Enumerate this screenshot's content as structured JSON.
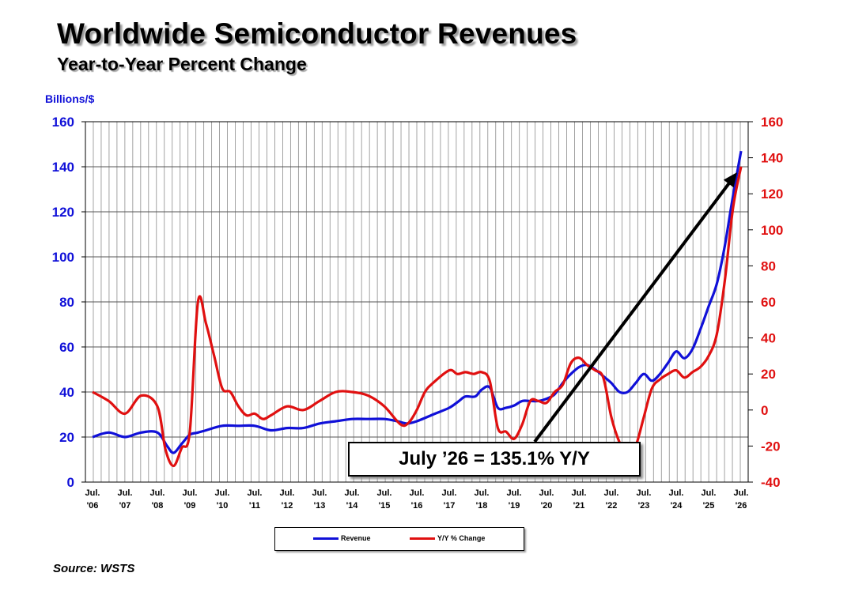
{
  "chart_data": {
    "type": "line",
    "title": "Worldwide Semiconductor Revenues",
    "subtitle": "Year-to-Year Percent Change",
    "ylabel": "Billions/$",
    "ylim": [
      0,
      160
    ],
    "y2lim": [
      -40,
      160
    ],
    "yticks": [
      "0",
      "20",
      "40",
      "60",
      "80",
      "100",
      "120",
      "140",
      "160"
    ],
    "y2ticks": [
      "-40",
      "-20",
      "0",
      "20",
      "40",
      "60",
      "80",
      "100",
      "120",
      "140",
      "160"
    ],
    "x_ticks": [
      [
        "Jul.",
        "'06"
      ],
      [
        "Jul.",
        "'07"
      ],
      [
        "Jul.",
        "'08"
      ],
      [
        "Jul.",
        "'09"
      ],
      [
        "Jul.",
        "'10"
      ],
      [
        "Jul.",
        "'11"
      ],
      [
        "Jul.",
        "'12"
      ],
      [
        "Jul.",
        "'13"
      ],
      [
        "Jul.",
        "'14"
      ],
      [
        "Jul.",
        "'15"
      ],
      [
        "Jul.",
        "'16"
      ],
      [
        "Jul.",
        "'17"
      ],
      [
        "Jul.",
        "'18"
      ],
      [
        "Jul.",
        "'19"
      ],
      [
        "Jul.",
        "'20"
      ],
      [
        "Jul.",
        "'21"
      ],
      [
        "Jul.",
        "'22"
      ],
      [
        "Jul.",
        "'23"
      ],
      [
        "Jul.",
        "'24"
      ],
      [
        "Jul.",
        "'25"
      ],
      [
        "Jul.",
        "'26"
      ]
    ],
    "grid": true,
    "legend_position": "bottom-center",
    "series": [
      {
        "name": "Revenue",
        "axis": "left",
        "color": "#1010d8",
        "x": [
          2006.5,
          2007.0,
          2007.5,
          2008.0,
          2008.5,
          2008.8,
          2009.0,
          2009.25,
          2009.5,
          2009.75,
          2010.0,
          2010.5,
          2011.0,
          2011.5,
          2012.0,
          2012.5,
          2013.0,
          2013.5,
          2014.0,
          2014.5,
          2015.0,
          2015.5,
          2015.9,
          2016.2,
          2016.5,
          2017.0,
          2017.5,
          2017.8,
          2018.0,
          2018.3,
          2018.5,
          2018.75,
          2019.0,
          2019.25,
          2019.5,
          2019.75,
          2020.0,
          2020.25,
          2020.5,
          2020.75,
          2021.0,
          2021.25,
          2021.5,
          2021.75,
          2022.0,
          2022.25,
          2022.5,
          2022.75,
          2023.0,
          2023.25,
          2023.5,
          2023.75,
          2024.0,
          2024.25,
          2024.5,
          2024.75,
          2025.0,
          2025.25,
          2025.5,
          2025.75,
          2026.0,
          2026.25,
          2026.5
        ],
        "values": [
          20,
          22,
          20,
          22,
          22,
          16,
          13,
          17,
          21,
          22,
          23,
          25,
          25,
          25,
          23,
          24,
          24,
          26,
          27,
          28,
          28,
          28,
          27,
          26,
          27,
          30,
          33,
          36,
          38,
          38,
          41,
          42,
          33,
          33,
          34,
          36,
          36,
          36,
          37,
          39,
          44,
          48,
          51,
          52,
          50,
          47,
          44,
          40,
          40,
          44,
          48,
          45,
          48,
          53,
          58,
          55,
          59,
          68,
          78,
          88,
          105,
          127,
          147
        ]
      },
      {
        "name": "Y/Y % Change",
        "axis": "right",
        "color": "#e01010",
        "x": [
          2006.5,
          2007.0,
          2007.5,
          2008.0,
          2008.5,
          2008.75,
          2009.0,
          2009.25,
          2009.5,
          2009.75,
          2010.0,
          2010.25,
          2010.5,
          2010.75,
          2011.0,
          2011.25,
          2011.5,
          2011.75,
          2012.0,
          2012.5,
          2013.0,
          2013.5,
          2014.0,
          2014.5,
          2015.0,
          2015.5,
          2016.0,
          2016.25,
          2016.5,
          2016.75,
          2017.0,
          2017.5,
          2017.75,
          2018.0,
          2018.25,
          2018.5,
          2018.75,
          2019.0,
          2019.25,
          2019.5,
          2019.75,
          2020.0,
          2020.25,
          2020.5,
          2020.75,
          2021.0,
          2021.25,
          2021.5,
          2021.75,
          2022.0,
          2022.25,
          2022.5,
          2022.75,
          2023.0,
          2023.25,
          2023.5,
          2023.75,
          2024.0,
          2024.25,
          2024.5,
          2024.75,
          2025.0,
          2025.25,
          2025.5,
          2025.75,
          2026.0,
          2026.25,
          2026.5
        ],
        "values": [
          10,
          5,
          -2,
          8,
          2,
          -22,
          -31,
          -21,
          -12,
          60,
          48,
          30,
          12,
          10,
          2,
          -3,
          -2,
          -5,
          -3,
          2,
          0,
          5,
          10,
          10,
          8,
          2,
          -8,
          -7,
          0,
          10,
          15,
          22,
          20,
          21,
          20,
          21,
          16,
          -10,
          -12,
          -16,
          -8,
          5,
          5,
          4,
          10,
          14,
          26,
          29,
          25,
          22,
          18,
          -4,
          -18,
          -26,
          -20,
          -4,
          12,
          17,
          20,
          22,
          18,
          21,
          24,
          30,
          42,
          72,
          112,
          135.1
        ]
      }
    ],
    "annotation": "July ’26 = 135.1% Y/Y",
    "source": "Source: WSTS",
    "colors": {
      "revenue": "#1010d8",
      "yoy": "#e01010",
      "arrow": "#000000"
    }
  }
}
